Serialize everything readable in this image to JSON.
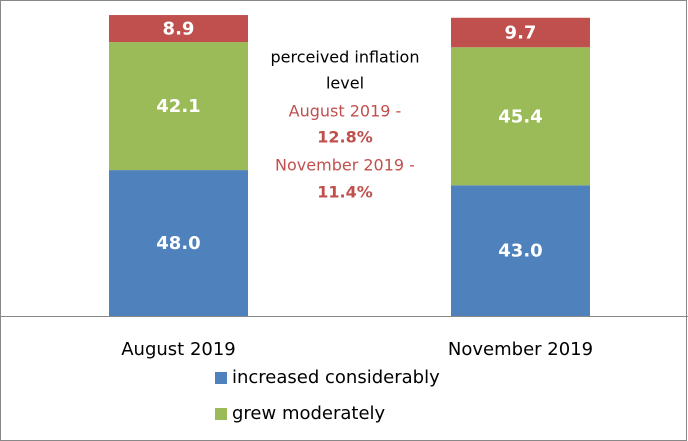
{
  "chart_data": {
    "type": "stacked_bar",
    "categories": [
      "August 2019",
      "November 2019"
    ],
    "series": [
      {
        "name": "increased considerably",
        "color": "#4f81bd",
        "values": [
          48.0,
          43.0
        ],
        "value_labels": [
          "48.0",
          "43.0"
        ]
      },
      {
        "name": "grew moderately",
        "color": "#9bbb59",
        "values": [
          42.1,
          45.4
        ],
        "value_labels": [
          "42.1",
          "45.4"
        ]
      },
      {
        "color": "#c0504d",
        "values": [
          8.9,
          9.7
        ],
        "value_labels": [
          "8.9",
          "9.7"
        ]
      }
    ],
    "ylim": [
      0,
      100
    ],
    "annotations": [
      "perceived inflation",
      "level",
      "August 2019 -",
      "12.8%",
      "November 2019 -",
      "11.4%"
    ]
  }
}
